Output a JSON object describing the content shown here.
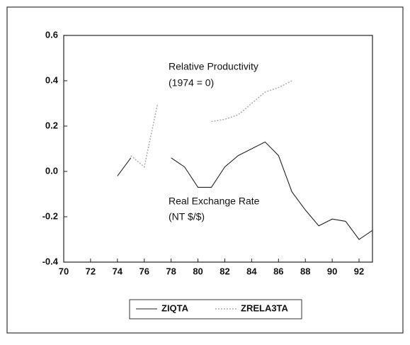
{
  "chart_data": {
    "type": "line",
    "x": [
      70,
      71,
      72,
      73,
      74,
      75,
      76,
      77,
      78,
      79,
      80,
      81,
      82,
      83,
      84,
      85,
      86,
      87,
      88,
      89,
      90,
      91,
      92,
      93
    ],
    "series": [
      {
        "name": "ZIQTA",
        "color": "#222222",
        "values": [
          null,
          null,
          null,
          null,
          -0.02,
          0.06,
          null,
          null,
          0.06,
          0.02,
          -0.07,
          -0.07,
          0.02,
          0.07,
          0.1,
          0.13,
          0.07,
          -0.09,
          -0.17,
          -0.24,
          -0.21,
          -0.22,
          -0.3,
          -0.26
        ]
      },
      {
        "name": "ZRELA3TA",
        "color": "#b0b0b0",
        "values": [
          null,
          null,
          null,
          null,
          null,
          0.07,
          0.02,
          0.3,
          null,
          null,
          null,
          0.22,
          0.23,
          0.25,
          0.3,
          0.35,
          0.37,
          0.4,
          null,
          null,
          null,
          null,
          null,
          null
        ]
      }
    ],
    "annotations": [
      "Relative Productivity",
      "(1974 = 0)",
      "Real Exchange Rate",
      "(NT $/$)"
    ],
    "xlim": [
      70,
      93
    ],
    "xticks": [
      70,
      72,
      74,
      76,
      78,
      80,
      82,
      84,
      86,
      88,
      90,
      92
    ],
    "ylim": [
      -0.4,
      0.6
    ],
    "yticks": [
      {
        "value": -0.4,
        "label": "-0.4"
      },
      {
        "value": -0.2,
        "label": "-0.2"
      },
      {
        "value": 0,
        "label": "0.0"
      },
      {
        "value": 0.2,
        "label": "0.2"
      },
      {
        "value": 0.4,
        "label": "0.4"
      },
      {
        "value": 0.6,
        "label": "0.6"
      }
    ]
  }
}
